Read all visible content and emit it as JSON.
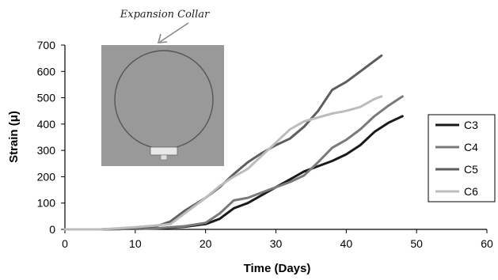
{
  "chart_data": {
    "type": "line",
    "title": "",
    "xlabel": "Time (Days)",
    "ylabel": "Strain (μ)",
    "xlim": [
      0,
      60
    ],
    "ylim": [
      0,
      700
    ],
    "xticks": [
      0,
      10,
      20,
      30,
      40,
      50,
      60
    ],
    "yticks": [
      0,
      100,
      200,
      300,
      400,
      500,
      600,
      700
    ],
    "grid": false,
    "legend_position": "right",
    "annotation": "Expansion Collar",
    "inset_image": "photo of expansion collar ring",
    "series": [
      {
        "name": "C3",
        "color": "#1a1a1a",
        "x": [
          0,
          5,
          10,
          13,
          15,
          17,
          20,
          22,
          24,
          26,
          28,
          30,
          32,
          34,
          36,
          38,
          40,
          42,
          44,
          46,
          48
        ],
        "y": [
          0,
          0,
          2,
          4,
          7,
          10,
          20,
          40,
          80,
          100,
          130,
          160,
          190,
          220,
          240,
          260,
          285,
          320,
          370,
          405,
          430
        ]
      },
      {
        "name": "C4",
        "color": "#7a7a7a",
        "x": [
          0,
          5,
          10,
          13,
          15,
          17,
          20,
          22,
          24,
          26,
          28,
          30,
          32,
          34,
          36,
          38,
          40,
          42,
          44,
          46,
          48
        ],
        "y": [
          0,
          0,
          2,
          4,
          8,
          12,
          25,
          60,
          110,
          120,
          140,
          160,
          180,
          205,
          255,
          310,
          340,
          380,
          430,
          470,
          505
        ]
      },
      {
        "name": "C5",
        "color": "#5e5e5e",
        "x": [
          0,
          5,
          10,
          13,
          15,
          17,
          20,
          22,
          24,
          26,
          28,
          30,
          32,
          34,
          36,
          38,
          40,
          42,
          44,
          45
        ],
        "y": [
          0,
          0,
          5,
          12,
          30,
          70,
          120,
          160,
          210,
          255,
          290,
          320,
          345,
          390,
          450,
          530,
          560,
          600,
          640,
          660
        ]
      },
      {
        "name": "C6",
        "color": "#bcbcbc",
        "x": [
          0,
          5,
          10,
          13,
          15,
          17,
          20,
          22,
          24,
          26,
          28,
          30,
          32,
          34,
          36,
          38,
          40,
          42,
          44,
          45
        ],
        "y": [
          0,
          0,
          8,
          15,
          20,
          60,
          120,
          165,
          200,
          230,
          280,
          330,
          380,
          410,
          425,
          440,
          450,
          465,
          495,
          505
        ]
      }
    ]
  }
}
